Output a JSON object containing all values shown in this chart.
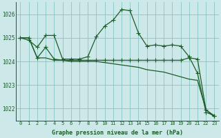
{
  "title": "",
  "xlabel": "Graphe pression niveau de la mer (hPa)",
  "ylabel": "",
  "bg_color": "#cce8e8",
  "grid_color": "#88c4c4",
  "line_color": "#1a5c28",
  "xlim": [
    -0.5,
    23.5
  ],
  "ylim": [
    1021.5,
    1026.5
  ],
  "yticks": [
    1022,
    1023,
    1024,
    1025,
    1026
  ],
  "xticks": [
    0,
    1,
    2,
    3,
    4,
    5,
    6,
    7,
    8,
    9,
    10,
    11,
    12,
    13,
    14,
    15,
    16,
    17,
    18,
    19,
    20,
    21,
    22,
    23
  ],
  "series1_x": [
    0,
    1,
    2,
    3,
    4,
    5,
    6,
    7,
    8,
    9,
    10,
    11,
    12,
    13,
    14,
    15,
    16,
    17,
    18,
    19,
    20,
    21,
    22,
    23
  ],
  "series1_y": [
    1025.0,
    1024.9,
    1024.6,
    1025.1,
    1025.1,
    1024.1,
    1024.1,
    1024.1,
    1024.2,
    1025.05,
    1025.5,
    1025.75,
    1026.2,
    1026.15,
    1025.2,
    1024.65,
    1024.7,
    1024.65,
    1024.7,
    1024.65,
    1024.2,
    1023.5,
    1021.85,
    1021.7
  ],
  "series2_x": [
    0,
    1,
    2,
    3,
    4,
    5,
    6,
    7,
    8,
    9,
    10,
    11,
    12,
    13,
    14,
    15,
    16,
    17,
    18,
    19,
    20,
    21,
    22,
    23
  ],
  "series2_y": [
    1025.0,
    1025.0,
    1024.15,
    1024.6,
    1024.1,
    1024.05,
    1024.05,
    1024.05,
    1024.05,
    1024.05,
    1024.05,
    1024.05,
    1024.05,
    1024.05,
    1024.05,
    1024.05,
    1024.05,
    1024.05,
    1024.05,
    1024.05,
    1024.15,
    1024.1,
    1021.95,
    1021.7
  ],
  "series3_x": [
    0,
    1,
    2,
    3,
    4,
    5,
    6,
    7,
    8,
    9,
    10,
    11,
    12,
    13,
    14,
    15,
    16,
    17,
    18,
    19,
    20,
    21,
    22,
    23
  ],
  "series3_y": [
    1025.0,
    1025.0,
    1024.15,
    1024.15,
    1024.05,
    1024.05,
    1024.0,
    1024.0,
    1024.0,
    1024.0,
    1023.95,
    1023.9,
    1023.85,
    1023.8,
    1023.75,
    1023.65,
    1023.6,
    1023.55,
    1023.45,
    1023.35,
    1023.25,
    1023.2,
    1021.95,
    1021.65
  ]
}
